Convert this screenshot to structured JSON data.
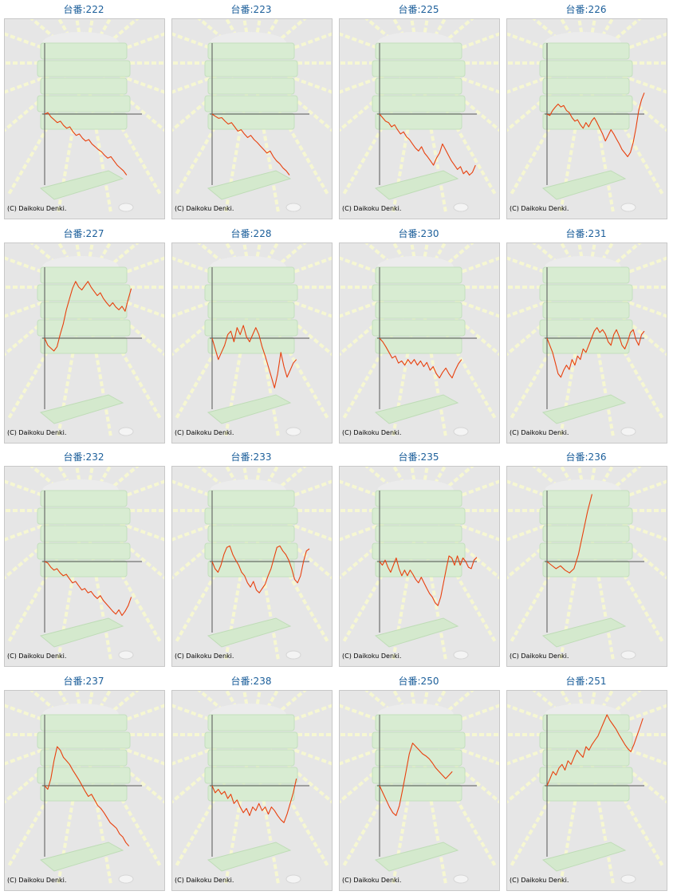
{
  "copyright": "(C) Daikoku Denki.",
  "colors": {
    "line": "#e8400e",
    "axis": "#555555",
    "title": "#1b5e9a",
    "panel_bg": "#e6e6e6"
  },
  "chart_data": [
    {
      "type": "line",
      "title": "台番:222",
      "ylim": [
        -1,
        1
      ],
      "values": [
        0,
        0.02,
        -0.04,
        -0.08,
        -0.12,
        -0.1,
        -0.16,
        -0.2,
        -0.18,
        -0.25,
        -0.3,
        -0.28,
        -0.34,
        -0.38,
        -0.36,
        -0.42,
        -0.46,
        -0.5,
        -0.53,
        -0.58,
        -0.62,
        -0.6,
        -0.66,
        -0.72,
        -0.76,
        -0.8,
        -0.86
      ]
    },
    {
      "type": "line",
      "title": "台番:223",
      "ylim": [
        -1,
        1
      ],
      "values": [
        0,
        -0.03,
        -0.06,
        -0.05,
        -0.1,
        -0.14,
        -0.12,
        -0.18,
        -0.24,
        -0.22,
        -0.28,
        -0.33,
        -0.3,
        -0.36,
        -0.4,
        -0.45,
        -0.5,
        -0.55,
        -0.52,
        -0.6,
        -0.66,
        -0.7,
        -0.76,
        -0.8,
        -0.86
      ]
    },
    {
      "type": "line",
      "title": "台番:225",
      "ylim": [
        -1,
        1
      ],
      "values": [
        0,
        -0.05,
        -0.1,
        -0.12,
        -0.18,
        -0.15,
        -0.22,
        -0.28,
        -0.25,
        -0.32,
        -0.36,
        -0.42,
        -0.48,
        -0.52,
        -0.46,
        -0.55,
        -0.6,
        -0.66,
        -0.72,
        -0.62,
        -0.55,
        -0.42,
        -0.5,
        -0.58,
        -0.66,
        -0.72,
        -0.78,
        -0.74,
        -0.84,
        -0.8,
        -0.86,
        -0.82,
        -0.72
      ]
    },
    {
      "type": "line",
      "title": "台番:226",
      "ylim": [
        -1,
        1
      ],
      "values": [
        0,
        -0.02,
        0.05,
        0.1,
        0.14,
        0.1,
        0.12,
        0.05,
        0.02,
        -0.05,
        -0.1,
        -0.08,
        -0.15,
        -0.2,
        -0.12,
        -0.18,
        -0.1,
        -0.05,
        -0.12,
        -0.2,
        -0.28,
        -0.38,
        -0.3,
        -0.22,
        -0.28,
        -0.35,
        -0.42,
        -0.5,
        -0.55,
        -0.6,
        -0.54,
        -0.4,
        -0.2,
        0.05,
        0.2,
        0.3
      ]
    },
    {
      "type": "line",
      "title": "台番:227",
      "ylim": [
        -1,
        1
      ],
      "values": [
        0,
        -0.1,
        -0.14,
        -0.18,
        -0.12,
        0.05,
        0.2,
        0.4,
        0.55,
        0.7,
        0.8,
        0.72,
        0.68,
        0.74,
        0.8,
        0.72,
        0.66,
        0.6,
        0.64,
        0.56,
        0.5,
        0.45,
        0.5,
        0.44,
        0.4,
        0.45,
        0.38,
        0.55,
        0.7
      ]
    },
    {
      "type": "line",
      "title": "台番:228",
      "ylim": [
        -1,
        1
      ],
      "values": [
        0,
        -0.15,
        -0.3,
        -0.2,
        -0.1,
        0.05,
        0.1,
        -0.05,
        0.15,
        0.05,
        0.18,
        0.02,
        -0.05,
        0.05,
        0.15,
        0.05,
        -0.12,
        -0.25,
        -0.4,
        -0.55,
        -0.7,
        -0.5,
        -0.2,
        -0.4,
        -0.55,
        -0.45,
        -0.35,
        -0.3
      ]
    },
    {
      "type": "line",
      "title": "台番:230",
      "ylim": [
        -1,
        1
      ],
      "values": [
        0,
        -0.05,
        -0.12,
        -0.2,
        -0.28,
        -0.25,
        -0.35,
        -0.32,
        -0.38,
        -0.3,
        -0.36,
        -0.3,
        -0.38,
        -0.32,
        -0.4,
        -0.34,
        -0.45,
        -0.4,
        -0.5,
        -0.56,
        -0.48,
        -0.42,
        -0.5,
        -0.56,
        -0.45,
        -0.36,
        -0.3
      ]
    },
    {
      "type": "line",
      "title": "台番:231",
      "ylim": [
        -1,
        1
      ],
      "values": [
        0,
        -0.1,
        -0.2,
        -0.35,
        -0.5,
        -0.55,
        -0.45,
        -0.38,
        -0.44,
        -0.3,
        -0.38,
        -0.25,
        -0.3,
        -0.15,
        -0.2,
        -0.1,
        0,
        0.1,
        0.15,
        0.08,
        0.12,
        0.06,
        -0.05,
        -0.1,
        0.05,
        0.12,
        0.02,
        -0.1,
        -0.15,
        -0.05,
        0.08,
        0.12,
        -0.02,
        -0.1,
        0.05,
        0.1
      ]
    },
    {
      "type": "line",
      "title": "台番:232",
      "ylim": [
        -1,
        1
      ],
      "values": [
        0,
        -0.02,
        -0.08,
        -0.12,
        -0.1,
        -0.16,
        -0.2,
        -0.18,
        -0.24,
        -0.3,
        -0.28,
        -0.34,
        -0.4,
        -0.38,
        -0.44,
        -0.42,
        -0.48,
        -0.52,
        -0.48,
        -0.55,
        -0.6,
        -0.65,
        -0.7,
        -0.74,
        -0.68,
        -0.76,
        -0.7,
        -0.62,
        -0.5
      ]
    },
    {
      "type": "line",
      "title": "台番:233",
      "ylim": [
        -1,
        1
      ],
      "values": [
        0,
        -0.1,
        -0.15,
        -0.05,
        0.1,
        0.2,
        0.22,
        0.1,
        0.02,
        -0.05,
        -0.15,
        -0.2,
        -0.3,
        -0.36,
        -0.28,
        -0.4,
        -0.44,
        -0.38,
        -0.32,
        -0.2,
        -0.1,
        0.05,
        0.2,
        0.22,
        0.15,
        0.1,
        0.02,
        -0.1,
        -0.25,
        -0.3,
        -0.2,
        0,
        0.15,
        0.18
      ]
    },
    {
      "type": "line",
      "title": "台番:235",
      "ylim": [
        -1,
        1
      ],
      "values": [
        0,
        -0.05,
        0.02,
        -0.08,
        -0.15,
        -0.05,
        0.05,
        -0.1,
        -0.2,
        -0.12,
        -0.2,
        -0.12,
        -0.18,
        -0.25,
        -0.3,
        -0.22,
        -0.3,
        -0.38,
        -0.45,
        -0.5,
        -0.58,
        -0.62,
        -0.5,
        -0.3,
        -0.1,
        0.08,
        0.05,
        -0.05,
        0.08,
        -0.05,
        0.05,
        0,
        -0.08,
        -0.1,
        0.02,
        0.06
      ]
    },
    {
      "type": "line",
      "title": "台番:236",
      "ylim": [
        -1,
        1
      ],
      "values": [
        0,
        -0.05,
        -0.1,
        -0.06,
        -0.12,
        -0.16,
        -0.1,
        0.1,
        0.4,
        0.7,
        0.95
      ]
    },
    {
      "type": "line",
      "title": "台番:237",
      "ylim": [
        -1,
        1
      ],
      "values": [
        0,
        -0.05,
        0.1,
        0.35,
        0.55,
        0.5,
        0.4,
        0.35,
        0.3,
        0.22,
        0.15,
        0.08,
        0,
        -0.08,
        -0.15,
        -0.12,
        -0.2,
        -0.28,
        -0.32,
        -0.38,
        -0.45,
        -0.52,
        -0.56,
        -0.6,
        -0.68,
        -0.72,
        -0.8,
        -0.85
      ]
    },
    {
      "type": "line",
      "title": "台番:238",
      "ylim": [
        -1,
        1
      ],
      "values": [
        0,
        -0.1,
        -0.05,
        -0.12,
        -0.08,
        -0.18,
        -0.12,
        -0.25,
        -0.2,
        -0.3,
        -0.38,
        -0.32,
        -0.42,
        -0.3,
        -0.35,
        -0.25,
        -0.35,
        -0.3,
        -0.4,
        -0.3,
        -0.35,
        -0.42,
        -0.48,
        -0.52,
        -0.4,
        -0.25,
        -0.1,
        0.1
      ]
    },
    {
      "type": "line",
      "title": "台番:250",
      "ylim": [
        -1,
        1
      ],
      "values": [
        0,
        -0.1,
        -0.2,
        -0.3,
        -0.38,
        -0.42,
        -0.28,
        -0.05,
        0.2,
        0.45,
        0.6,
        0.55,
        0.5,
        0.45,
        0.42,
        0.38,
        0.32,
        0.25,
        0.2,
        0.15,
        0.1,
        0.15,
        0.2
      ]
    },
    {
      "type": "line",
      "title": "台番:251",
      "ylim": [
        -1,
        1
      ],
      "values": [
        0,
        0.1,
        0.2,
        0.15,
        0.25,
        0.3,
        0.22,
        0.35,
        0.3,
        0.4,
        0.5,
        0.45,
        0.4,
        0.55,
        0.5,
        0.58,
        0.64,
        0.7,
        0.8,
        0.9,
        1,
        0.92,
        0.86,
        0.8,
        0.72,
        0.65,
        0.58,
        0.52,
        0.48,
        0.58,
        0.7,
        0.82,
        0.95
      ]
    }
  ]
}
